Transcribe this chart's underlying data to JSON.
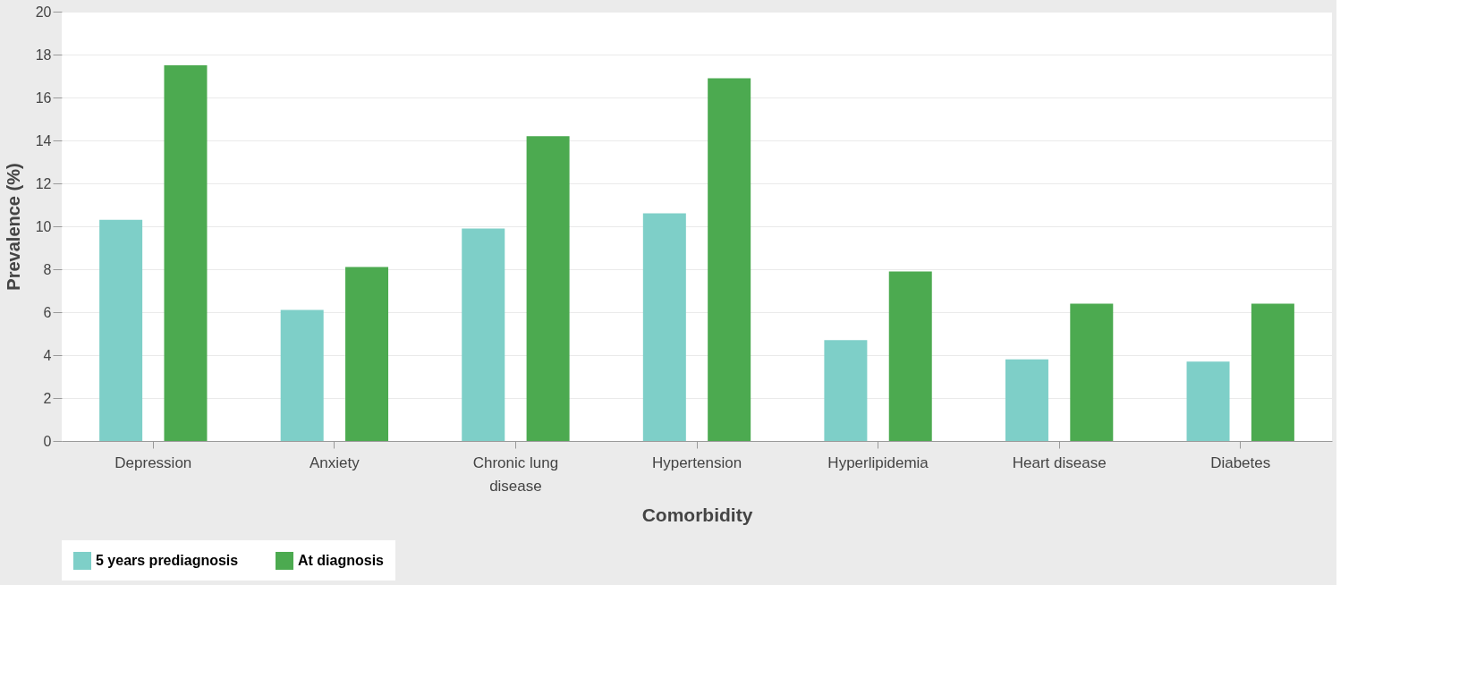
{
  "chart_data": {
    "type": "bar",
    "xlabel": "Comorbidity",
    "ylabel": "Prevalence (%)",
    "categories": [
      "Depression",
      "Anxiety",
      "Chronic lung disease",
      "Hypertension",
      "Hyperlipidemia",
      "Heart disease",
      "Diabetes"
    ],
    "series": [
      {
        "name": "5 years prediagnosis",
        "color": "#7ecfc8",
        "values": [
          10.3,
          6.1,
          9.9,
          10.6,
          4.7,
          3.8,
          3.7
        ]
      },
      {
        "name": "At diagnosis",
        "color": "#4caa50",
        "values": [
          17.5,
          8.1,
          14.2,
          16.9,
          7.9,
          6.4,
          6.4
        ]
      }
    ],
    "ylim": [
      0,
      20
    ],
    "yticks": [
      0,
      2,
      4,
      6,
      8,
      10,
      12,
      14,
      16,
      18,
      20
    ],
    "grid": "y",
    "legend": "bottom"
  }
}
